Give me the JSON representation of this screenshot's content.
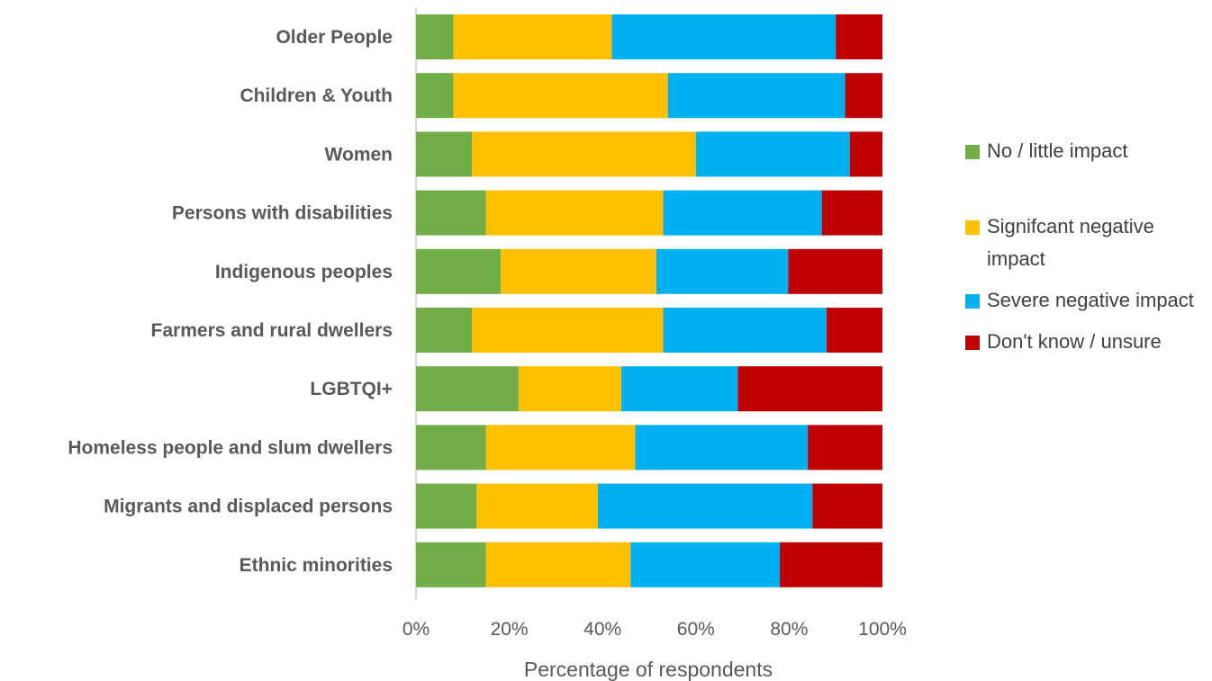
{
  "chart_data": {
    "type": "bar",
    "orientation": "horizontal",
    "stacked": "percent",
    "categories": [
      "Older People",
      "Children & Youth",
      "Women",
      "Persons with disabilities",
      "Indigenous peoples",
      "Farmers and rural dwellers",
      "LGBTQI+",
      "Homeless people and slum dwellers",
      "Migrants and displaced persons",
      "Ethnic minorities"
    ],
    "series": [
      {
        "name": "No / little impact",
        "color": "#70ad47",
        "values": [
          8,
          8,
          12,
          15,
          18,
          12,
          22,
          15,
          13,
          15
        ]
      },
      {
        "name": "Signifcant negative impact",
        "color": "#ffc000",
        "values": [
          34,
          46,
          48,
          38,
          33,
          41,
          22,
          32,
          26,
          31
        ]
      },
      {
        "name": "Severe negative impact",
        "color": "#00b0f0",
        "values": [
          48,
          38,
          33,
          34,
          28,
          35,
          25,
          37,
          46,
          32
        ]
      },
      {
        "name": "Don't know / unsure",
        "color": "#c00000",
        "values": [
          10,
          8,
          7,
          13,
          20,
          12,
          31,
          16,
          15,
          22
        ]
      }
    ],
    "xlabel": "Percentage of respondents",
    "x_ticks": [
      "0%",
      "20%",
      "40%",
      "60%",
      "80%",
      "100%"
    ],
    "xlim": [
      0,
      100
    ],
    "grid": false,
    "legend_position": "right"
  }
}
